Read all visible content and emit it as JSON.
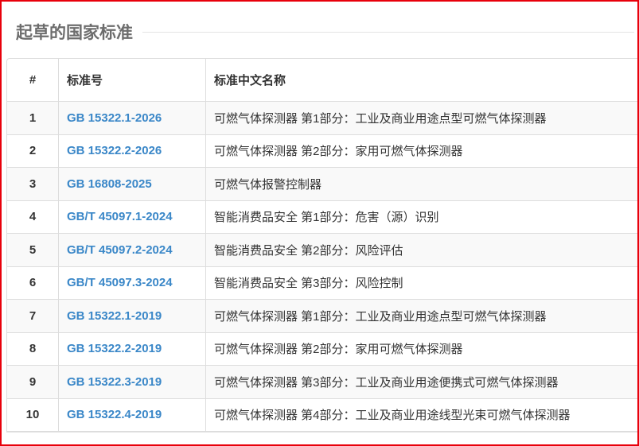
{
  "section_title": "起草的国家标准",
  "table": {
    "headers": [
      "#",
      "标准号",
      "标准中文名称"
    ],
    "rows": [
      {
        "n": "1",
        "code": "GB 15322.1-2026",
        "name": "可燃气体探测器 第1部分：工业及商业用途点型可燃气体探测器"
      },
      {
        "n": "2",
        "code": "GB 15322.2-2026",
        "name": "可燃气体探测器 第2部分：家用可燃气体探测器"
      },
      {
        "n": "3",
        "code": "GB 16808-2025",
        "name": "可燃气体报警控制器"
      },
      {
        "n": "4",
        "code": "GB/T 45097.1-2024",
        "name": "智能消费品安全 第1部分：危害（源）识别"
      },
      {
        "n": "5",
        "code": "GB/T 45097.2-2024",
        "name": "智能消费品安全 第2部分：风险评估"
      },
      {
        "n": "6",
        "code": "GB/T 45097.3-2024",
        "name": "智能消费品安全 第3部分：风险控制"
      },
      {
        "n": "7",
        "code": "GB 15322.1-2019",
        "name": "可燃气体探测器 第1部分：工业及商业用途点型可燃气体探测器"
      },
      {
        "n": "8",
        "code": "GB 15322.2-2019",
        "name": "可燃气体探测器 第2部分：家用可燃气体探测器"
      },
      {
        "n": "9",
        "code": "GB 15322.3-2019",
        "name": "可燃气体探测器 第3部分：工业及商业用途便携式可燃气体探测器"
      },
      {
        "n": "10",
        "code": "GB 15322.4-2019",
        "name": "可燃气体探测器 第4部分：工业及商业用途线型光束可燃气体探测器"
      }
    ]
  },
  "colors": {
    "link": "#3a87c8",
    "frame": "#e8000b",
    "stripe": "#f9f9f9"
  }
}
